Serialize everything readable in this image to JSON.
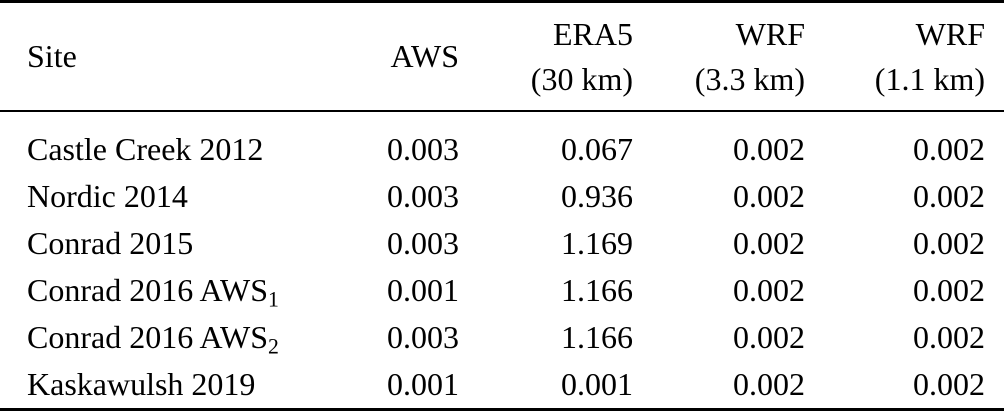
{
  "page": {
    "kind": "journal-paper-table",
    "background": "#ffffff"
  },
  "colors": {
    "text": "#000000",
    "rule": "#000000",
    "background": "#ffffff"
  },
  "table": {
    "columns": [
      {
        "label": "Site",
        "unit": ""
      },
      {
        "label": "AWS",
        "unit": ""
      },
      {
        "label": "ERA5",
        "unit": "(30 km)"
      },
      {
        "label": "WRF",
        "unit": "(3.3 km)"
      },
      {
        "label": "WRF",
        "unit": "(1.1 km)"
      }
    ],
    "rows": [
      {
        "site": "Castle Creek 2012",
        "site_sub": "",
        "aws": "0.003",
        "era5_30km": "0.067",
        "wrf_3_3km": "0.002",
        "wrf_1_1km": "0.002"
      },
      {
        "site": "Nordic 2014",
        "site_sub": "",
        "aws": "0.003",
        "era5_30km": "0.936",
        "wrf_3_3km": "0.002",
        "wrf_1_1km": "0.002"
      },
      {
        "site": "Conrad 2015",
        "site_sub": "",
        "aws": "0.003",
        "era5_30km": "1.169",
        "wrf_3_3km": "0.002",
        "wrf_1_1km": "0.002"
      },
      {
        "site": "Conrad 2016 AWS",
        "site_sub": "1",
        "aws": "0.001",
        "era5_30km": "1.166",
        "wrf_3_3km": "0.002",
        "wrf_1_1km": "0.002"
      },
      {
        "site": "Conrad 2016 AWS",
        "site_sub": "2",
        "aws": "0.003",
        "era5_30km": "1.166",
        "wrf_3_3km": "0.002",
        "wrf_1_1km": "0.002"
      },
      {
        "site": "Kaskawulsh 2019",
        "site_sub": "",
        "aws": "0.001",
        "era5_30km": "0.001",
        "wrf_3_3km": "0.002",
        "wrf_1_1km": "0.002"
      }
    ]
  }
}
